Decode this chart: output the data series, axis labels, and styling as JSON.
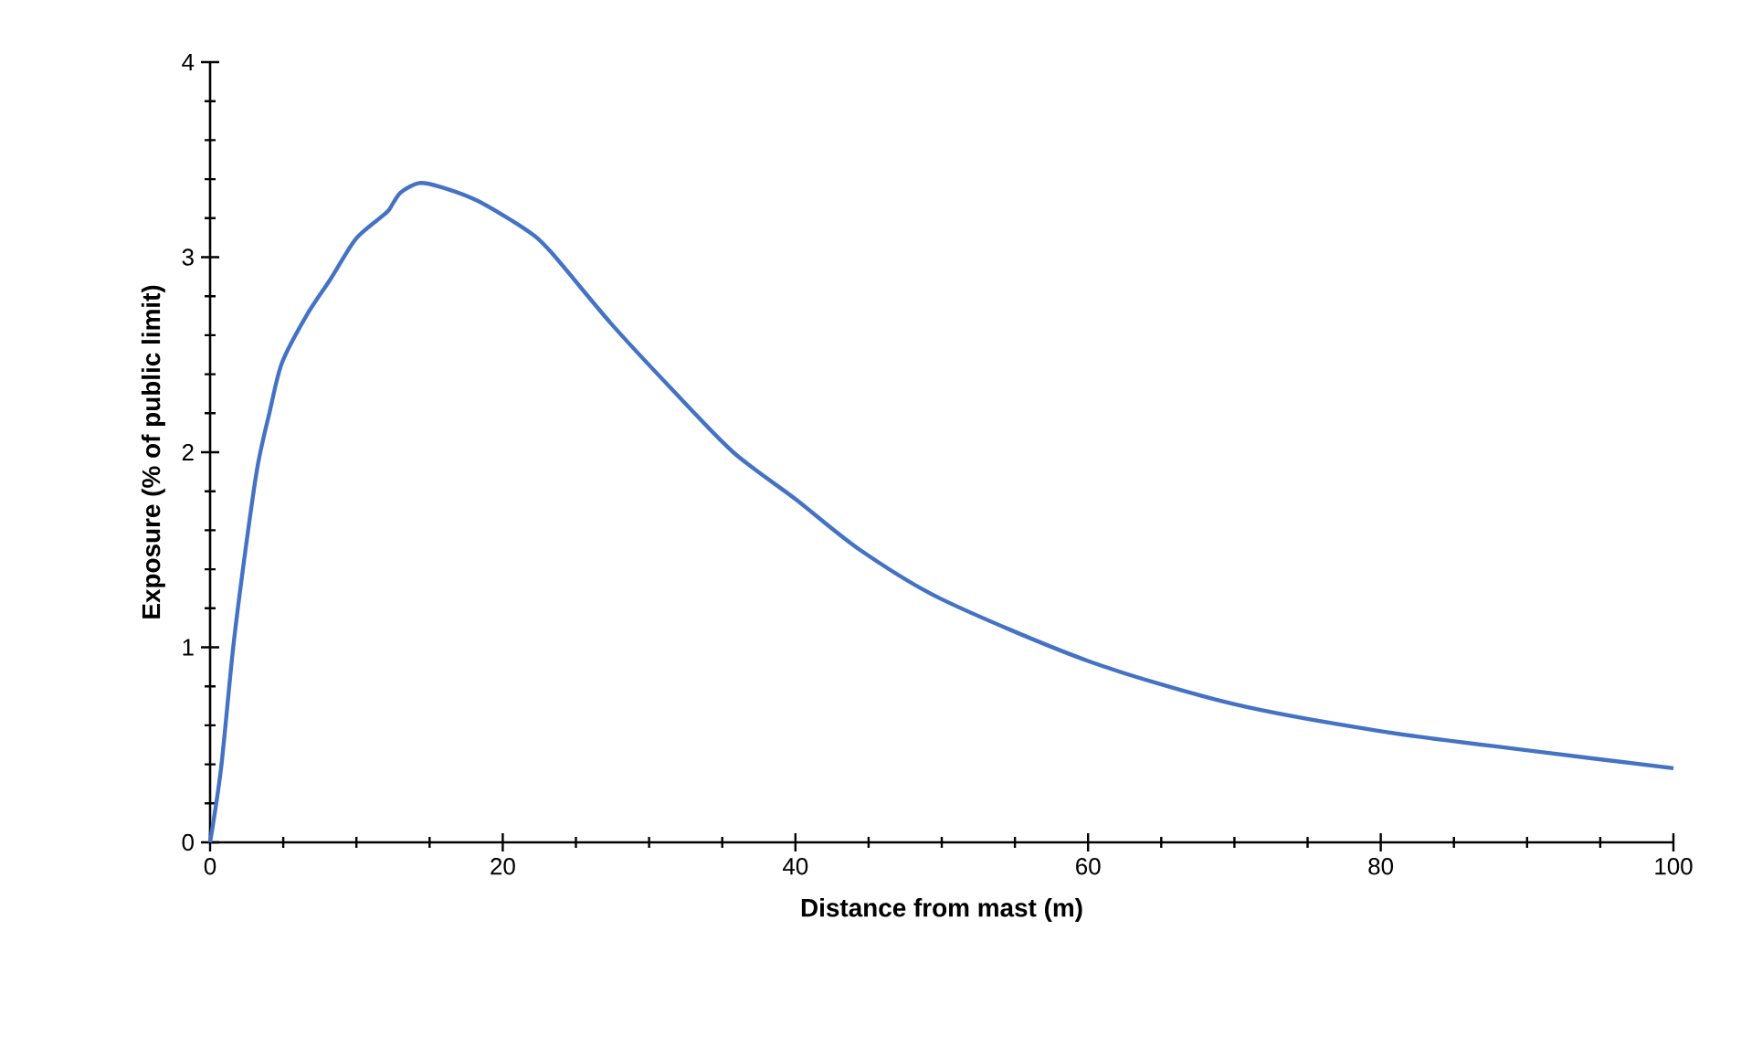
{
  "chart_data": {
    "type": "line",
    "xlabel": "Distance  from mast (m)",
    "ylabel": "Exposure (% of public limit)",
    "x": [
      0,
      0.75,
      1.58,
      2.42,
      3.25,
      4.08,
      4.92,
      6.58,
      8.25,
      9.92,
      11.58,
      12.2,
      13,
      14.3,
      15.75,
      18.25,
      21.6,
      23.25,
      27.4,
      31.6,
      35.75,
      40,
      44.4,
      49.9,
      60,
      69.9,
      80,
      90.2,
      100
    ],
    "series": [
      {
        "color": "#4472c4",
        "values": [
          0,
          0.38,
          1.0,
          1.5,
          1.93,
          2.21,
          2.46,
          2.7,
          2.89,
          3.09,
          3.2,
          3.24,
          3.33,
          3.38,
          3.36,
          3.29,
          3.14,
          3.03,
          2.66,
          2.32,
          2.0,
          1.76,
          1.5,
          1.25,
          0.93,
          0.71,
          0.57,
          0.47,
          0.38
        ]
      }
    ],
    "xlim": [
      0,
      100
    ],
    "xticks": [
      0,
      {
        "value": 5,
        "label": null
      },
      {
        "value": 10,
        "label": null
      },
      {
        "value": 15,
        "label": null
      },
      20,
      {
        "value": 25,
        "label": null
      },
      {
        "value": 30,
        "label": null
      },
      {
        "value": 35,
        "label": null
      },
      40,
      {
        "value": 45,
        "label": null
      },
      {
        "value": 50,
        "label": null
      },
      {
        "value": 55,
        "label": null
      },
      60,
      {
        "value": 65,
        "label": null
      },
      {
        "value": 70,
        "label": null
      },
      {
        "value": 75,
        "label": null
      },
      80,
      {
        "value": 85,
        "label": null
      },
      {
        "value": 90,
        "label": null
      },
      {
        "value": 95,
        "label": null
      },
      100
    ],
    "ylim": [
      0,
      4
    ],
    "yticks": [
      0,
      {
        "value": 0.2,
        "label": null
      },
      {
        "value": 0.4,
        "label": null
      },
      {
        "value": 0.6,
        "label": null
      },
      {
        "value": 0.8,
        "label": null
      },
      1,
      {
        "value": 1.2,
        "label": null
      },
      {
        "value": 1.4,
        "label": null
      },
      {
        "value": 1.6,
        "label": null
      },
      {
        "value": 1.8,
        "label": null
      },
      2,
      {
        "value": 2.2,
        "label": null
      },
      {
        "value": 2.4,
        "label": null
      },
      {
        "value": 2.6,
        "label": null
      },
      {
        "value": 2.8,
        "label": null
      },
      3,
      {
        "value": 3.2,
        "label": null
      },
      {
        "value": 3.4,
        "label": null
      },
      {
        "value": 3.6,
        "label": null
      },
      {
        "value": 3.8,
        "label": null
      },
      4
    ],
    "grid": false,
    "marker": "none",
    "line_style": "solid"
  }
}
